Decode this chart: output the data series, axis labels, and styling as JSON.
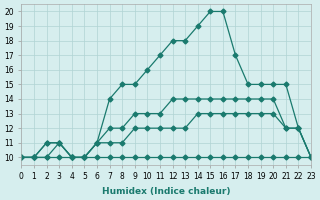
{
  "xlabel": "Humidex (Indice chaleur)",
  "bg_color": "#d6eeee",
  "line_color": "#1a7a6e",
  "xlim": [
    0,
    23
  ],
  "ylim": [
    9.5,
    20.5
  ],
  "xticks": [
    0,
    1,
    2,
    3,
    4,
    5,
    6,
    7,
    8,
    9,
    10,
    11,
    12,
    13,
    14,
    15,
    16,
    17,
    18,
    19,
    20,
    21,
    22,
    23
  ],
  "yticks": [
    10,
    11,
    12,
    13,
    14,
    15,
    16,
    17,
    18,
    19,
    20
  ],
  "lines": [
    {
      "x": [
        0,
        1,
        2,
        3,
        4,
        5,
        6,
        7,
        8,
        9,
        10,
        11,
        12,
        13,
        14,
        15,
        16,
        17,
        18,
        19,
        20,
        21,
        22,
        23
      ],
      "y": [
        10,
        10,
        10,
        10,
        10,
        10,
        10,
        10,
        10,
        10,
        10,
        10,
        10,
        10,
        10,
        10,
        10,
        10,
        10,
        10,
        10,
        10,
        10,
        10
      ]
    },
    {
      "x": [
        0,
        1,
        2,
        3,
        4,
        5,
        6,
        7,
        8,
        9,
        10,
        11,
        12,
        13,
        14,
        15,
        16,
        17,
        18,
        19,
        20,
        21,
        22,
        23
      ],
      "y": [
        10,
        10,
        10,
        11,
        10,
        10,
        11,
        11,
        11,
        12,
        12,
        12,
        12,
        12,
        13,
        13,
        13,
        13,
        13,
        13,
        13,
        12,
        12,
        10
      ]
    },
    {
      "x": [
        0,
        1,
        2,
        3,
        4,
        5,
        6,
        7,
        8,
        9,
        10,
        11,
        12,
        13,
        14,
        15,
        16,
        17,
        18,
        19,
        20,
        21,
        22,
        23
      ],
      "y": [
        10,
        10,
        11,
        11,
        10,
        10,
        11,
        12,
        12,
        13,
        13,
        13,
        14,
        14,
        14,
        14,
        14,
        14,
        14,
        14,
        14,
        12,
        12,
        10
      ]
    },
    {
      "x": [
        0,
        1,
        2,
        3,
        4,
        5,
        6,
        7,
        8,
        9,
        10,
        11,
        12,
        13,
        14,
        15,
        16,
        17,
        18,
        19,
        20,
        21,
        22,
        23
      ],
      "y": [
        10,
        10,
        11,
        11,
        10,
        10,
        11,
        14,
        15,
        15,
        16,
        17,
        18,
        18,
        19,
        20,
        20,
        17,
        15,
        15,
        15,
        15,
        12,
        10
      ]
    }
  ]
}
